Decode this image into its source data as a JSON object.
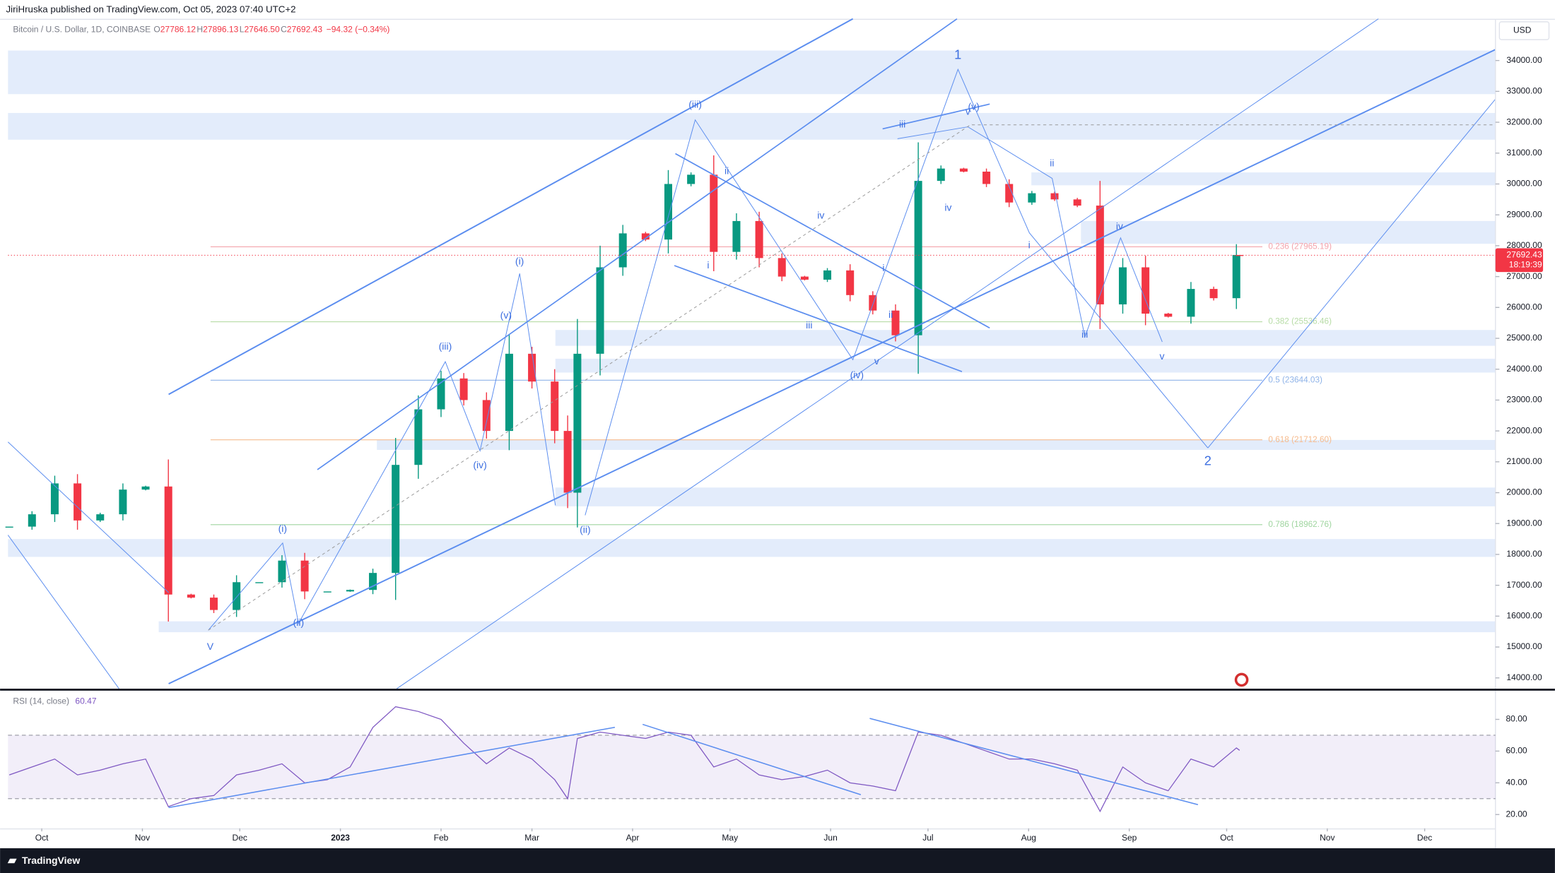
{
  "header": {
    "publisher": "JiriHruska published on TradingView.com, Oct 05, 2023 07:40 UTC+2",
    "brand": "TradingView",
    "currency": "USD"
  },
  "chart_data": {
    "type": "candlestick",
    "title": "Bitcoin / U.S. Dollar, 1D, COINBASE",
    "ohlc": [
      {
        "key": "O",
        "value": "27786.12"
      },
      {
        "key": "H",
        "value": "27896.13"
      },
      {
        "key": "L",
        "value": "27646.50"
      },
      {
        "key": "C",
        "value": "27692.43"
      }
    ],
    "change": "−94.32 (−0.34%)",
    "last_price": 27692.43,
    "countdown": "18:19:39",
    "x": [
      -10,
      -3,
      4,
      11,
      18,
      25,
      32,
      39,
      46,
      53,
      60,
      67,
      74,
      81,
      88,
      95,
      102,
      109,
      116,
      123,
      130,
      137,
      144,
      151,
      158,
      162,
      165,
      172,
      179,
      186,
      193,
      200,
      207,
      214,
      221,
      228,
      235,
      242,
      249,
      256,
      263,
      270,
      277,
      284,
      291,
      298,
      305,
      312,
      319,
      326,
      333,
      340,
      347,
      354,
      361,
      368,
      369
    ],
    "close": [
      18900,
      19300,
      20300,
      19100,
      19300,
      20100,
      20200,
      16700,
      16600,
      16200,
      17100,
      17100,
      17800,
      16800,
      16800,
      16850,
      17400,
      20900,
      22700,
      23700,
      23000,
      22000,
      24500,
      23600,
      22000,
      20000,
      24500,
      27300,
      28400,
      28200,
      30000,
      30300,
      27800,
      28800,
      27600,
      27000,
      26900,
      27200,
      26400,
      25900,
      25100,
      30100,
      30500,
      30400,
      30000,
      29400,
      29700,
      29500,
      29300,
      26100,
      27300,
      25800,
      25700,
      26600,
      26300,
      27700,
      27692.43
    ],
    "up_color": "#089981",
    "down_color": "#f23645",
    "xlim": [
      -10.4,
      447.8
    ],
    "xticks": [
      {
        "value": 0,
        "label": "Oct"
      },
      {
        "value": 31,
        "label": "Nov"
      },
      {
        "value": 61,
        "label": "Dec"
      },
      {
        "value": 92,
        "label": "2023"
      },
      {
        "value": 123,
        "label": "Feb"
      },
      {
        "value": 151,
        "label": "Mar"
      },
      {
        "value": 182,
        "label": "Apr"
      },
      {
        "value": 212,
        "label": "May"
      },
      {
        "value": 243,
        "label": "Jun"
      },
      {
        "value": 273,
        "label": "Jul"
      },
      {
        "value": 304,
        "label": "Aug"
      },
      {
        "value": 335,
        "label": "Sep"
      },
      {
        "value": 365,
        "label": "Oct"
      },
      {
        "value": 396,
        "label": "Nov"
      },
      {
        "value": 426,
        "label": "Dec"
      }
    ],
    "ylim": [
      13650,
      35350
    ],
    "yticks": [
      {
        "value": 14000,
        "label": "14000.00"
      },
      {
        "value": 15000,
        "label": "15000.00"
      },
      {
        "value": 16000,
        "label": "16000.00"
      },
      {
        "value": 17000,
        "label": "17000.00"
      },
      {
        "value": 18000,
        "label": "18000.00"
      },
      {
        "value": 19000,
        "label": "19000.00"
      },
      {
        "value": 20000,
        "label": "20000.00"
      },
      {
        "value": 21000,
        "label": "21000.00"
      },
      {
        "value": 22000,
        "label": "22000.00"
      },
      {
        "value": 23000,
        "label": "23000.00"
      },
      {
        "value": 24000,
        "label": "24000.00"
      },
      {
        "value": 25000,
        "label": "25000.00"
      },
      {
        "value": 26000,
        "label": "26000.00"
      },
      {
        "value": 27000,
        "label": "27000.00"
      },
      {
        "value": 28000,
        "label": "28000.00"
      },
      {
        "value": 29000,
        "label": "29000.00"
      },
      {
        "value": 30000,
        "label": "30000.00"
      },
      {
        "value": 31000,
        "label": "31000.00"
      },
      {
        "value": 32000,
        "label": "32000.00"
      },
      {
        "value": 33000,
        "label": "33000.00"
      },
      {
        "value": 34000,
        "label": "34000.00"
      }
    ],
    "fib": [
      {
        "label": "0.236 (27965.19)",
        "value": 27965.19,
        "color": "#f4a3ab"
      },
      {
        "label": "0.382 (25536.46)",
        "value": 25536.46,
        "color": "#b7dca6"
      },
      {
        "label": "0.5 (23644.03)",
        "value": 23644.03,
        "color": "#8fb3e8"
      },
      {
        "label": "0.618 (21712.60)",
        "value": 21712.6,
        "color": "#f6bb8e"
      },
      {
        "label": "0.786 (18962.76)",
        "value": 18962.76,
        "color": "#9fd59f"
      }
    ],
    "fib_range": [
      52,
      376
    ],
    "annotations": [
      {
        "text": "1",
        "x": 282.2,
        "y": 34160
      },
      {
        "text": "(iii)",
        "x": 201.3,
        "y": 32555
      },
      {
        "text": "(v)",
        "x": 287.1,
        "y": 32490
      },
      {
        "text": "iii",
        "x": 265.1,
        "y": 31910
      },
      {
        "text": "v",
        "x": 285.3,
        "y": 32330
      },
      {
        "text": "ii",
        "x": 211,
        "y": 30400
      },
      {
        "text": "iv",
        "x": 240,
        "y": 28960
      },
      {
        "text": "i",
        "x": 205.3,
        "y": 27355
      },
      {
        "text": "iv",
        "x": 279.2,
        "y": 29210
      },
      {
        "text": "ii",
        "x": 311.2,
        "y": 30660
      },
      {
        "text": "i",
        "x": 304.2,
        "y": 28000
      },
      {
        "text": "iv",
        "x": 332,
        "y": 28610
      },
      {
        "text": "(i)",
        "x": 147.2,
        "y": 27480
      },
      {
        "text": "(v)",
        "x": 143,
        "y": 25720
      },
      {
        "text": "(iii)",
        "x": 124.3,
        "y": 24720
      },
      {
        "text": "(iv)",
        "x": 135,
        "y": 20870
      },
      {
        "text": "(ii)",
        "x": 167.4,
        "y": 18780
      },
      {
        "text": "(i)",
        "x": 74.2,
        "y": 18815
      },
      {
        "text": "(ii)",
        "x": 79.1,
        "y": 15770
      },
      {
        "text": "V",
        "x": 51.9,
        "y": 15000
      },
      {
        "text": "i",
        "x": 259.3,
        "y": 27260
      },
      {
        "text": "ii",
        "x": 261.5,
        "y": 25750
      },
      {
        "text": "iii",
        "x": 236.4,
        "y": 25400
      },
      {
        "text": "v",
        "x": 257.2,
        "y": 24240
      },
      {
        "text": "(iv)",
        "x": 251.1,
        "y": 23790
      },
      {
        "text": "iii",
        "x": 321.3,
        "y": 25110
      },
      {
        "text": "v",
        "x": 345.1,
        "y": 24400
      },
      {
        "text": "2",
        "x": 359.2,
        "y": 21000
      }
    ],
    "rsi": {
      "title": "RSI (14, close)",
      "last": "60.47",
      "color": "#7e57c2",
      "values": [
        45,
        50,
        55,
        45,
        48,
        52,
        55,
        25,
        30,
        32,
        45,
        48,
        52,
        40,
        42,
        50,
        75,
        88,
        85,
        80,
        65,
        52,
        62,
        55,
        42,
        30,
        68,
        72,
        70,
        68,
        72,
        70,
        50,
        55,
        45,
        42,
        44,
        48,
        40,
        38,
        35,
        72,
        70,
        65,
        60,
        55,
        55,
        52,
        48,
        22,
        50,
        40,
        35,
        55,
        50,
        62,
        60.47
      ],
      "ylim": [
        11.25,
        98.1
      ],
      "bands": [
        30,
        70
      ],
      "yticks": [
        {
          "value": 20,
          "label": "20.00"
        },
        {
          "value": 40,
          "label": "40.00"
        },
        {
          "value": 60,
          "label": "60.00"
        },
        {
          "value": 80,
          "label": "80.00"
        }
      ]
    }
  }
}
